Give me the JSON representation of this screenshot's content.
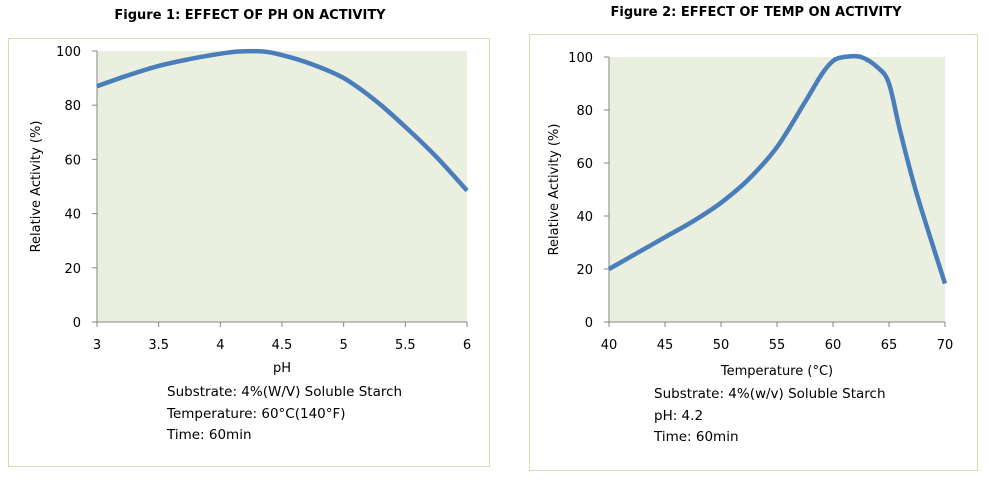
{
  "figures": [
    {
      "title": "Figure 1: EFFECT OF PH ON ACTIVITY",
      "notes": [
        "Substrate: 4%(W/V) Soluble Starch",
        "Temperature: 60°C(140°F)",
        "Time: 60min"
      ]
    },
    {
      "title": "Figure 2: EFFECT OF TEMP ON ACTIVITY",
      "notes": [
        "Substrate: 4%(w/v) Soluble Starch",
        "pH: 4.2",
        "Time: 60min"
      ]
    }
  ],
  "colors": {
    "plot_bg": "#ebefe0",
    "line": "#4a7ebb",
    "border": "#d2ddb5"
  },
  "chart_data": [
    {
      "type": "line",
      "title": "Figure 1: EFFECT OF PH ON ACTIVITY",
      "xlabel": "pH",
      "ylabel": "Relative Activity (%)",
      "xlim": [
        3,
        6
      ],
      "ylim": [
        0,
        100
      ],
      "xticks": [
        3,
        3.5,
        4,
        4.5,
        5,
        5.5,
        6
      ],
      "xtick_labels": [
        "3",
        "3.5",
        "4",
        "4.5",
        "5",
        "5.5",
        "6"
      ],
      "yticks": [
        0,
        20,
        40,
        60,
        80,
        100
      ],
      "ytick_labels": [
        "0",
        "20",
        "40",
        "60",
        "80",
        "100"
      ],
      "grid": false,
      "series": [
        {
          "x": [
            3,
            3.25,
            3.5,
            3.75,
            4,
            4.15,
            4.35,
            4.5,
            4.75,
            5,
            5.25,
            5.5,
            5.75,
            6
          ],
          "y": [
            87,
            91,
            94.5,
            97,
            99,
            99.8,
            99.8,
            98.5,
            95,
            90,
            82,
            72,
            61,
            48.5
          ]
        }
      ]
    },
    {
      "type": "line",
      "title": "Figure 2: EFFECT OF TEMP ON ACTIVITY",
      "xlabel": "Temperature (°C)",
      "ylabel": "Relative Activity (%)",
      "xlim": [
        40,
        70
      ],
      "ylim": [
        0,
        100
      ],
      "xticks": [
        40,
        45,
        50,
        55,
        60,
        65,
        70
      ],
      "xtick_labels": [
        "40",
        "45",
        "50",
        "55",
        "60",
        "65",
        "70"
      ],
      "yticks": [
        0,
        20,
        40,
        60,
        80,
        100
      ],
      "ytick_labels": [
        "0",
        "20",
        "40",
        "60",
        "80",
        "100"
      ],
      "grid": false,
      "series": [
        {
          "x": [
            40,
            42.5,
            45,
            47.5,
            50,
            52.5,
            55,
            57.5,
            59,
            60,
            61,
            62.5,
            64,
            65,
            66,
            67.5,
            70
          ],
          "y": [
            20,
            26,
            32,
            38,
            45,
            54,
            66,
            83,
            93.5,
            98.5,
            100,
            100,
            96,
            90,
            72,
            48,
            14.5
          ]
        }
      ]
    }
  ]
}
